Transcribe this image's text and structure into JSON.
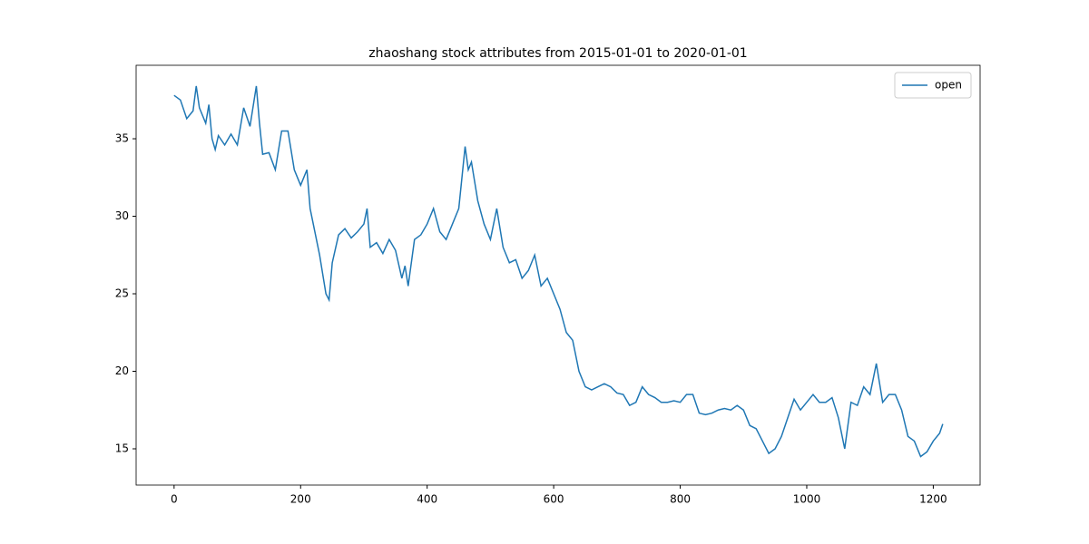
{
  "chart_data": {
    "type": "line",
    "title": "zhaoshang stock attributes from 2015-01-01 to 2020-01-01",
    "x": [
      0,
      10,
      20,
      30,
      35,
      40,
      50,
      55,
      60,
      65,
      70,
      80,
      90,
      100,
      110,
      120,
      130,
      135,
      140,
      150,
      160,
      170,
      180,
      190,
      200,
      210,
      215,
      220,
      230,
      240,
      245,
      250,
      260,
      270,
      280,
      290,
      300,
      305,
      310,
      320,
      330,
      340,
      350,
      360,
      365,
      370,
      380,
      390,
      400,
      410,
      420,
      430,
      440,
      450,
      460,
      465,
      470,
      480,
      490,
      500,
      510,
      520,
      530,
      540,
      550,
      560,
      570,
      580,
      590,
      600,
      610,
      620,
      630,
      640,
      650,
      660,
      670,
      680,
      690,
      700,
      710,
      720,
      730,
      740,
      750,
      760,
      770,
      780,
      790,
      800,
      810,
      820,
      830,
      840,
      850,
      860,
      870,
      880,
      890,
      900,
      910,
      920,
      930,
      940,
      950,
      960,
      970,
      980,
      990,
      1000,
      1010,
      1020,
      1030,
      1040,
      1050,
      1060,
      1070,
      1080,
      1090,
      1100,
      1110,
      1120,
      1130,
      1140,
      1150,
      1160,
      1170,
      1180,
      1190,
      1200,
      1210,
      1215
    ],
    "series": [
      {
        "name": "open",
        "color": "#1f77b4",
        "values": [
          37.8,
          37.5,
          36.3,
          36.8,
          38.4,
          37.0,
          36.0,
          37.2,
          35.0,
          34.3,
          35.2,
          34.6,
          35.3,
          34.6,
          37.0,
          35.8,
          38.4,
          36.0,
          34.0,
          34.1,
          33.0,
          35.5,
          35.5,
          33.0,
          32.0,
          33.0,
          30.5,
          29.5,
          27.5,
          25.0,
          24.6,
          27.0,
          28.8,
          29.2,
          28.6,
          29.0,
          29.5,
          30.5,
          28.0,
          28.3,
          27.6,
          28.5,
          27.8,
          26.0,
          26.8,
          25.5,
          28.5,
          28.8,
          29.5,
          30.5,
          29.0,
          28.5,
          29.5,
          30.5,
          34.5,
          33.0,
          33.5,
          31.0,
          29.5,
          28.5,
          30.5,
          28.0,
          27.0,
          27.2,
          26.0,
          26.5,
          27.5,
          25.5,
          26.0,
          25.0,
          24.0,
          22.5,
          22.0,
          20.0,
          19.0,
          18.8,
          19.0,
          19.2,
          19.0,
          18.6,
          18.5,
          17.8,
          18.0,
          19.0,
          18.5,
          18.3,
          18.0,
          18.0,
          18.1,
          18.0,
          18.5,
          18.5,
          17.3,
          17.2,
          17.3,
          17.5,
          17.6,
          17.5,
          17.8,
          17.5,
          16.5,
          16.3,
          15.5,
          14.7,
          15.0,
          15.8,
          17.0,
          18.2,
          17.5,
          18.0,
          18.5,
          18.0,
          18.0,
          18.3,
          17.0,
          15.0,
          18.0,
          17.8,
          19.0,
          18.5,
          20.5,
          18.0,
          18.5,
          18.5,
          17.5,
          15.8,
          15.5,
          14.5,
          14.8,
          15.5,
          16.0,
          16.6
        ]
      }
    ],
    "xlim": [
      -60,
      1274
    ],
    "xticks": [
      0,
      200,
      400,
      600,
      800,
      1000,
      1200
    ],
    "ylim": [
      12.66,
      39.74
    ],
    "yticks": [
      15,
      20,
      25,
      30,
      35
    ],
    "legend": "upper right"
  }
}
